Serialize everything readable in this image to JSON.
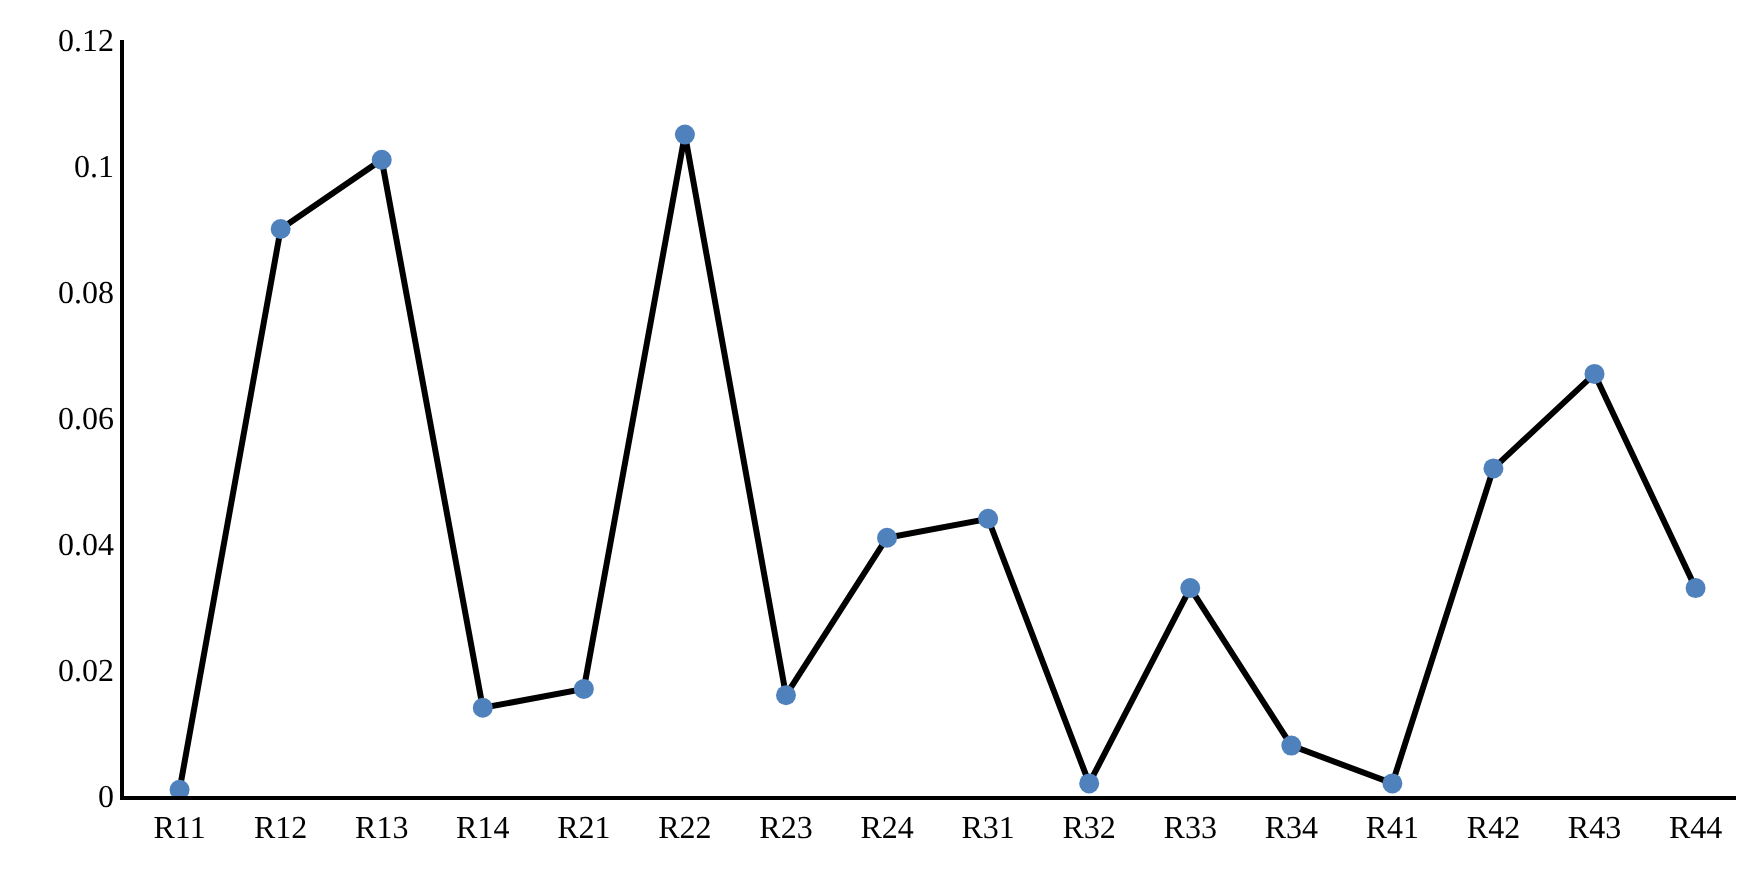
{
  "chart_data": {
    "type": "line",
    "categories": [
      "R11",
      "R12",
      "R13",
      "R14",
      "R21",
      "R22",
      "R23",
      "R24",
      "R31",
      "R32",
      "R33",
      "R34",
      "R41",
      "R42",
      "R43",
      "R44"
    ],
    "series": [
      {
        "color": "#000000",
        "colors": [
          "#4f81bd",
          "#4f81bd",
          "#4f81bd",
          "#4f81bd",
          "#4f81bd",
          "#4f81bd",
          "#4f81bd",
          "#4f81bd",
          "#4f81bd",
          "#4f81bd",
          "#4f81bd",
          "#4f81bd",
          "#4f81bd",
          "#4f81bd",
          "#4f81bd",
          "#4f81bd"
        ],
        "values": [
          0.001,
          0.09,
          0.101,
          0.014,
          0.017,
          0.105,
          0.016,
          0.041,
          0.044,
          0.002,
          0.033,
          0.008,
          0.002,
          0.052,
          0.067,
          0.033
        ]
      }
    ],
    "marker": "circle",
    "line_style": "solid",
    "ylim": [
      0,
      0.12
    ],
    "yticks": [
      0,
      0.02,
      0.04,
      0.06,
      0.08,
      0.1,
      0.12
    ],
    "legend": false
  }
}
